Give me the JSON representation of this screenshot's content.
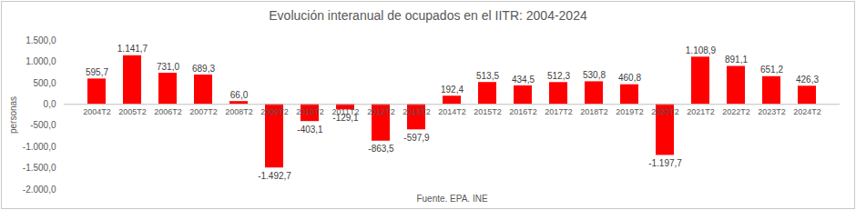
{
  "chart_data": {
    "type": "bar",
    "title": "Evolución interanual de ocupados en el IITR: 2004-2024",
    "y_label": "personas",
    "x_label": "Fuente. EPA. INE",
    "categories": [
      "2004T2",
      "2005T2",
      "2006T2",
      "2007T2",
      "2008T2",
      "2009T2",
      "2010T2",
      "2011T2",
      "2012T2",
      "2013T2",
      "2014T2",
      "2015T2",
      "2016T2",
      "2017T2",
      "2018T2",
      "2019T2",
      "2020T2",
      "2021T2",
      "2022T2",
      "2023T2",
      "2024T2"
    ],
    "values": [
      595.7,
      1141.7,
      731.0,
      689.3,
      66.0,
      -1492.7,
      -403.1,
      -129.1,
      -863.5,
      -597.9,
      192.4,
      513.5,
      434.5,
      512.3,
      530.8,
      460.8,
      -1197.7,
      1108.9,
      891.1,
      651.2,
      426.3
    ],
    "value_labels": [
      "595,7",
      "1.141,7",
      "731,0",
      "689,3",
      "66,0",
      "-1.492,7",
      "-403,1",
      "-129,1",
      "-863,5",
      "-597,9",
      "192,4",
      "513,5",
      "434,5",
      "512,3",
      "530,8",
      "460,8",
      "-1.197,7",
      "1.108,9",
      "891,1",
      "651,2",
      "426,3"
    ],
    "color": "#ff0000",
    "ylim": [
      -2000,
      1500
    ],
    "yticks": [
      {
        "value": -2000,
        "label": "-2.000,0"
      },
      {
        "value": -1500,
        "label": "-1.500,0"
      },
      {
        "value": -1000,
        "label": "-1.000,0"
      },
      {
        "value": -500,
        "label": "-500,0"
      },
      {
        "value": 0,
        "label": "0,0"
      },
      {
        "value": 500,
        "label": "500,0"
      },
      {
        "value": 1000,
        "label": "1.000,0"
      },
      {
        "value": 1500,
        "label": "1.500,0"
      }
    ],
    "grid": false,
    "data_labels": true
  }
}
